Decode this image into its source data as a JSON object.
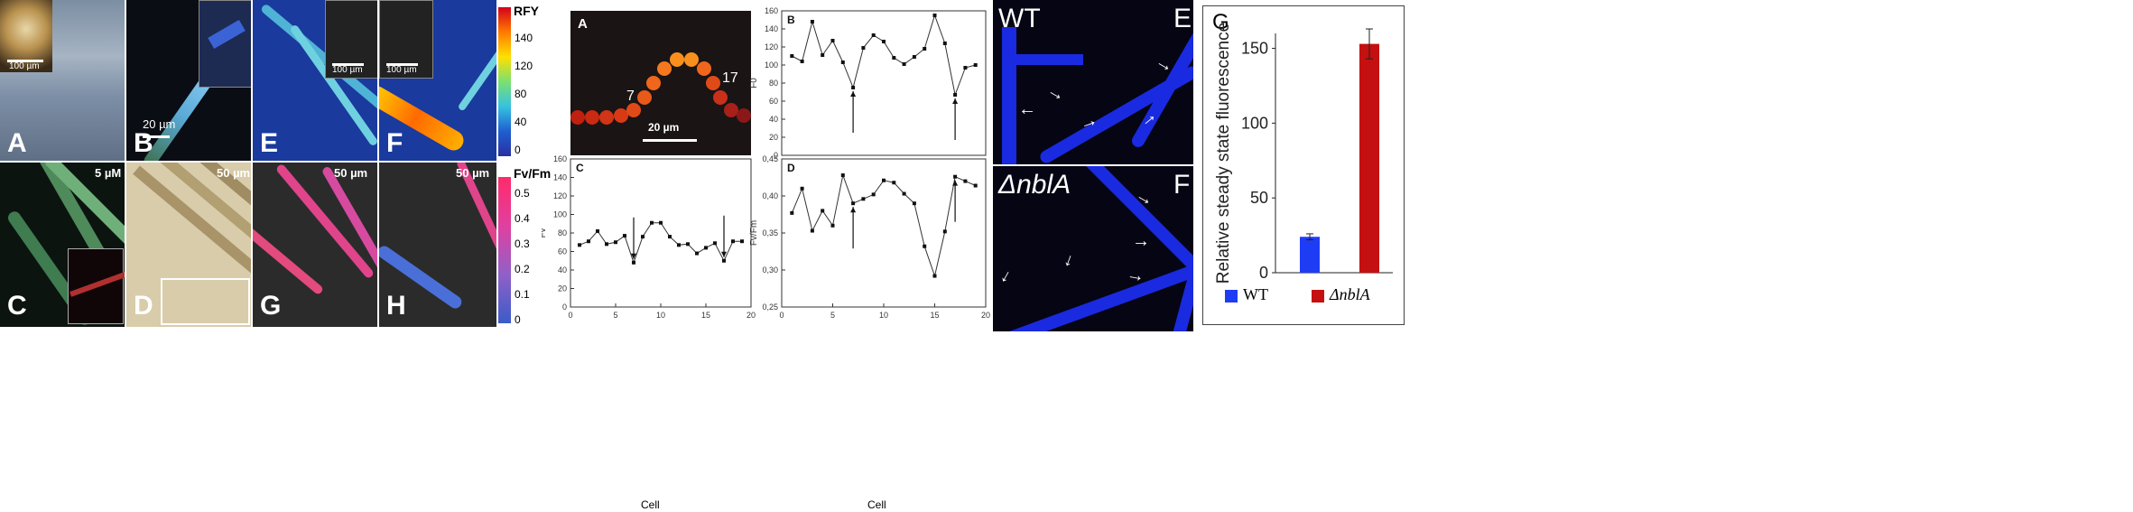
{
  "microscopy": {
    "panels": [
      {
        "label": "A",
        "scale": "100 µm"
      },
      {
        "label": "B",
        "scale": "20 µm"
      },
      {
        "label": "E",
        "scale": "100 µm"
      },
      {
        "label": "F",
        "scale": "100 µm"
      },
      {
        "label": "C",
        "scale": "5 µM"
      },
      {
        "label": "D",
        "scale": "50 µm"
      },
      {
        "label": "G",
        "scale": "50 µm"
      },
      {
        "label": "H",
        "scale": "50 µm"
      }
    ],
    "colorbar_top": {
      "title": "RFY",
      "ticks": [
        "140",
        "120",
        "80",
        "40",
        "0"
      ]
    },
    "colorbar_bottom": {
      "title": "Fv/Fm",
      "ticks": [
        "0.5",
        "0.4",
        "0.3",
        "0.2",
        "0.1",
        "0"
      ]
    }
  },
  "filament_fig": {
    "A": {
      "label": "A",
      "cell_labels": [
        "7",
        "17"
      ],
      "scale": "20 µm"
    },
    "xlabel": "Cell"
  },
  "chart_data": [
    {
      "type": "line",
      "panel": "B",
      "ylabel": "F0",
      "xlabel": "",
      "xlim": [
        0,
        20
      ],
      "ylim": [
        0,
        160
      ],
      "yticks": [
        "0",
        "20",
        "40",
        "60",
        "80",
        "100",
        "120",
        "140",
        "160"
      ],
      "x": [
        1,
        2,
        3,
        4,
        5,
        6,
        7,
        8,
        9,
        10,
        11,
        12,
        13,
        14,
        15,
        16,
        17,
        18,
        19
      ],
      "values": [
        110,
        104,
        148,
        111,
        127,
        103,
        75,
        119,
        133,
        126,
        108,
        101,
        109,
        118,
        155,
        124,
        67,
        97,
        100
      ],
      "arrows_at": [
        7,
        17
      ]
    },
    {
      "type": "line",
      "panel": "C",
      "ylabel": "Fv",
      "xlabel": "Cell",
      "xlim": [
        0,
        20
      ],
      "ylim": [
        0,
        160
      ],
      "xticks": [
        "0",
        "5",
        "10",
        "15",
        "20"
      ],
      "yticks": [
        "0",
        "20",
        "40",
        "60",
        "80",
        "100",
        "120",
        "140",
        "160"
      ],
      "x": [
        1,
        2,
        3,
        4,
        5,
        6,
        7,
        8,
        9,
        10,
        11,
        12,
        13,
        14,
        15,
        16,
        17,
        18,
        19
      ],
      "values": [
        67,
        71,
        82,
        68,
        70,
        77,
        48,
        76,
        91,
        91,
        76,
        67,
        68,
        58,
        64,
        69,
        50,
        71,
        71
      ],
      "arrows_at": [
        7,
        17
      ]
    },
    {
      "type": "line",
      "panel": "D",
      "ylabel": "Fv/Fm",
      "xlabel": "Cell",
      "xlim": [
        0,
        20
      ],
      "ylim": [
        0.25,
        0.45
      ],
      "xticks": [
        "0",
        "5",
        "10",
        "15",
        "20"
      ],
      "yticks": [
        "0,25",
        "0,30",
        "0,35",
        "0,40",
        "0,45"
      ],
      "x": [
        1,
        2,
        3,
        4,
        5,
        6,
        7,
        8,
        9,
        10,
        11,
        12,
        13,
        14,
        15,
        16,
        17,
        18,
        19
      ],
      "values": [
        0.377,
        0.41,
        0.353,
        0.38,
        0.36,
        0.428,
        0.39,
        0.396,
        0.402,
        0.421,
        0.418,
        0.403,
        0.39,
        0.332,
        0.292,
        0.352,
        0.426,
        0.42,
        0.414
      ],
      "arrows_at": [
        7,
        17
      ]
    },
    {
      "type": "bar",
      "panel": "G",
      "ylabel": "Relative steady state fluorescence",
      "xlabel": "",
      "ylim": [
        0,
        160
      ],
      "yticks": [
        "0",
        "50",
        "100",
        "150"
      ],
      "categories": [
        "WT",
        "ΔnblA"
      ],
      "values": [
        24,
        153
      ],
      "errors": [
        2,
        10
      ],
      "colors": [
        "#1f3cf5",
        "#c41010"
      ]
    }
  ],
  "wt_nbla": {
    "top": {
      "label": "WT",
      "panel": "E"
    },
    "bottom": {
      "label": "ΔnblA",
      "panel": "F"
    }
  },
  "bar_panel": {
    "label": "G",
    "legend": [
      "WT",
      "ΔnblA"
    ]
  }
}
